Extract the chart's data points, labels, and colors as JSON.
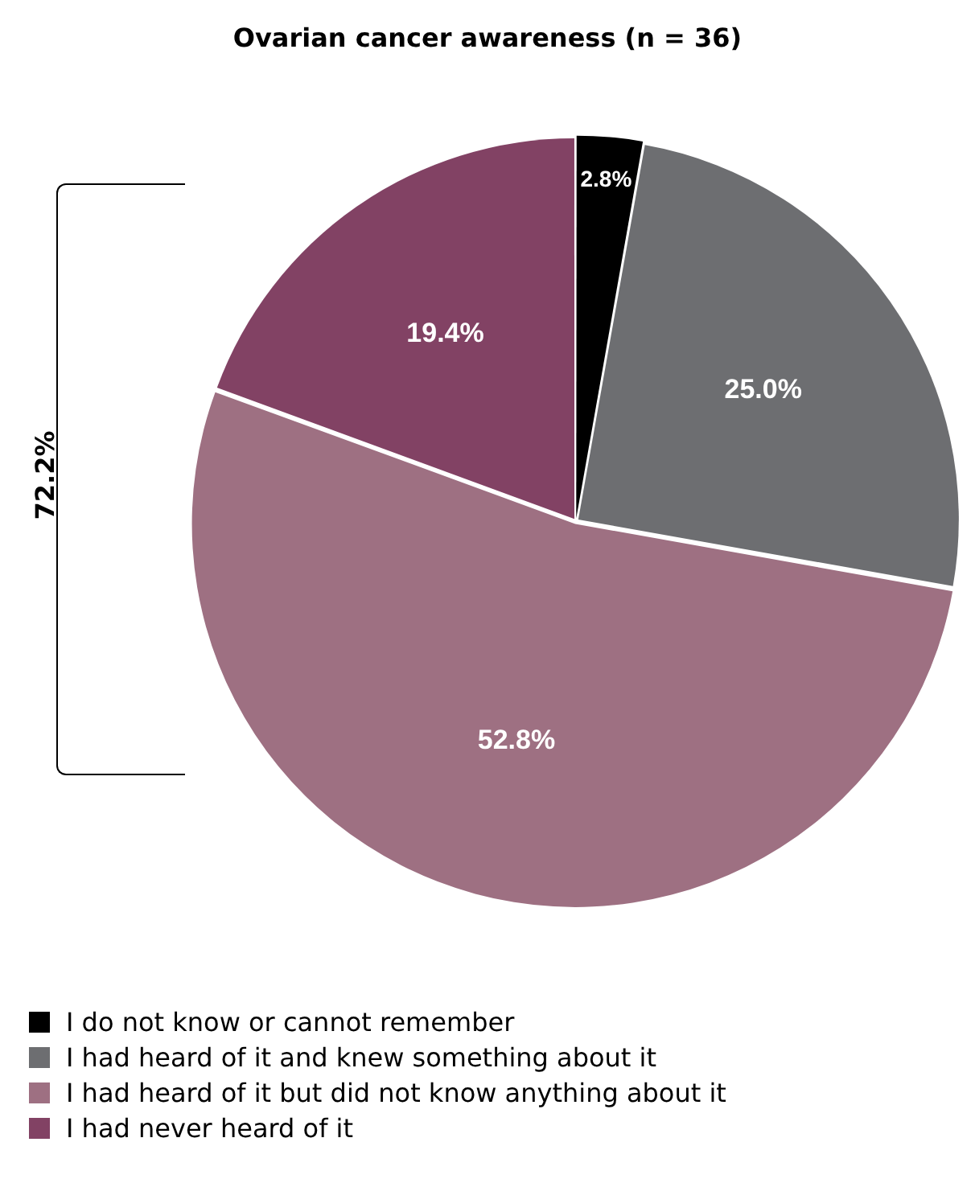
{
  "chart_data": {
    "type": "pie",
    "title": "Ovarian cancer awareness (n = 36)",
    "categories": [
      "I do not know or cannot remember",
      "I had heard of it and knew something about it",
      "I had heard of it but did not know anything about it",
      "I had never heard of it"
    ],
    "values": [
      2.8,
      25.0,
      52.8,
      19.4
    ],
    "colors": [
      "#000000",
      "#6d6e71",
      "#9e7082",
      "#824264"
    ],
    "value_labels": [
      "2.8%",
      "25.0%",
      "52.8%",
      "19.4%"
    ],
    "annotations": [
      "72.2%"
    ],
    "legend": "bottom"
  }
}
